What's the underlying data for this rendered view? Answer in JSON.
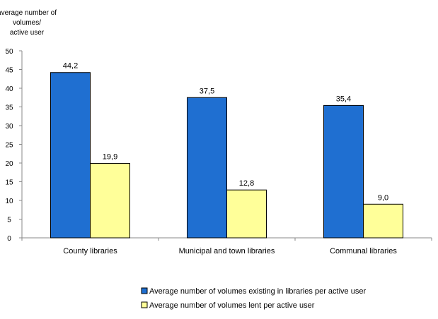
{
  "chart_data": {
    "type": "bar",
    "ylabel_lines": [
      "average number of",
      "volumes/",
      "active user"
    ],
    "categories": [
      "County libraries",
      "Municipal and town libraries",
      "Communal libraries"
    ],
    "series": [
      {
        "name": "Average number of volumes existing in libraries per active user",
        "values": [
          44.2,
          37.5,
          35.4
        ],
        "labels": [
          "44,2",
          "37,5",
          "35,4"
        ],
        "color": "#1f6fd1"
      },
      {
        "name": "Average number of volumes lent per active user",
        "values": [
          19.9,
          12.8,
          9.0
        ],
        "labels": [
          "19,9",
          "12,8",
          "9,0"
        ],
        "color": "#ffff99"
      }
    ],
    "ylim": [
      0,
      50
    ],
    "yticks": [
      0,
      5,
      10,
      15,
      20,
      25,
      30,
      35,
      40,
      45,
      50
    ],
    "grid": false,
    "legend_position": "bottom"
  }
}
